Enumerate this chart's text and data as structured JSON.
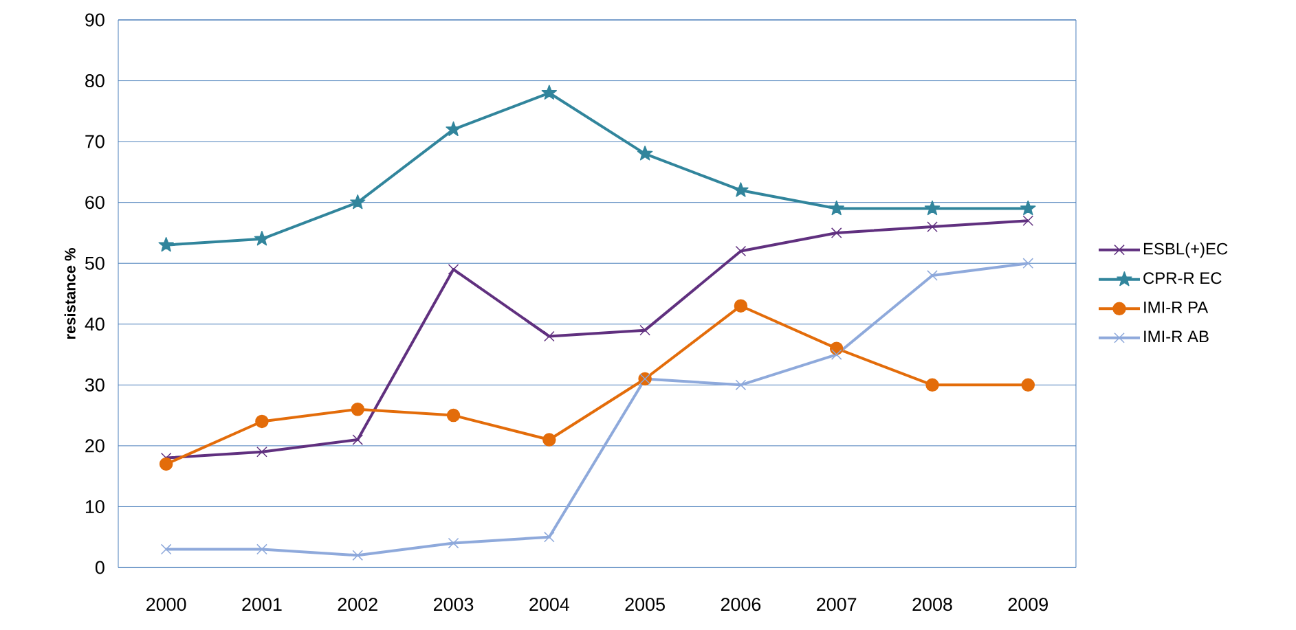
{
  "chart_data": {
    "type": "line",
    "ylabel": "resistance %",
    "categories": [
      "2000",
      "2001",
      "2002",
      "2003",
      "2004",
      "2005",
      "2006",
      "2007",
      "2008",
      "2009"
    ],
    "series": [
      {
        "name": "ESBL(+)EC",
        "color": "#60307f",
        "marker": "cross",
        "values": [
          18,
          19,
          21,
          49,
          38,
          39,
          52,
          55,
          56,
          57
        ]
      },
      {
        "name": "CPR-R EC",
        "color": "#31859c",
        "marker": "star",
        "values": [
          53,
          54,
          60,
          72,
          78,
          68,
          62,
          59,
          59,
          59
        ]
      },
      {
        "name": "IMI-R PA",
        "color": "#e36c0a",
        "marker": "circle",
        "values": [
          17,
          24,
          26,
          25,
          21,
          31,
          43,
          36,
          30,
          30
        ]
      },
      {
        "name": "IMI-R AB",
        "color": "#8ea9db",
        "marker": "cross",
        "values": [
          3,
          3,
          2,
          4,
          5,
          31,
          30,
          35,
          48,
          50
        ]
      }
    ],
    "ylim": [
      0,
      90
    ],
    "yticks": [
      0,
      10,
      20,
      30,
      40,
      50,
      60,
      70,
      80,
      90
    ],
    "grid": "y",
    "legend": "right",
    "line_style": "solid"
  }
}
